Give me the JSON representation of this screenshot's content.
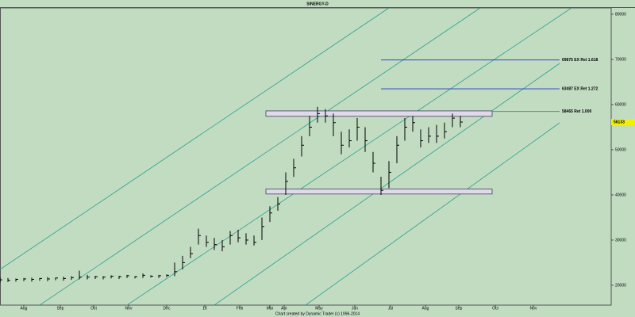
{
  "chart_data": {
    "type": "ohlc",
    "title": "SINERGY-D",
    "footer": "Chart created by Dynamic Trader (c) 1996-2014",
    "color": "#000000",
    "high": [
      21800,
      21600,
      21500,
      21600,
      21700,
      21600,
      21800,
      21700,
      21900,
      22000,
      23200,
      22300,
      22100,
      22000,
      22200,
      22100,
      22300,
      22000,
      22600,
      22200,
      22300,
      22400,
      25000,
      26500,
      28500,
      32500,
      31000,
      30500,
      30000,
      32000,
      32300,
      31500,
      31000,
      35000,
      37500,
      39500,
      45000,
      48000,
      53000,
      57500,
      59500,
      59000,
      58000,
      54000,
      54500,
      57000,
      55000,
      49500,
      44000,
      47500,
      53000,
      57000,
      57500,
      54500,
      55000,
      55500,
      56000,
      58000,
      57500
    ],
    "low": [
      20600,
      20700,
      20800,
      20900,
      20800,
      21000,
      20900,
      21100,
      21000,
      21200,
      21300,
      21300,
      21400,
      21300,
      21500,
      21400,
      21600,
      21500,
      21600,
      21700,
      21600,
      21800,
      22000,
      23500,
      26000,
      29000,
      28500,
      27800,
      27500,
      29000,
      29500,
      29000,
      28800,
      30000,
      34000,
      36500,
      40000,
      44000,
      48500,
      53000,
      56000,
      56000,
      53000,
      49000,
      50500,
      52000,
      49500,
      45000,
      40000,
      41500,
      47000,
      52000,
      54000,
      50500,
      51500,
      51500,
      52500,
      55000,
      55000
    ],
    "close": [
      21200,
      21100,
      21300,
      21400,
      21300,
      21500,
      21400,
      21600,
      21500,
      21700,
      21800,
      21800,
      21900,
      21800,
      22000,
      21900,
      22100,
      21900,
      22200,
      22000,
      22100,
      22200,
      23000,
      25000,
      27000,
      31000,
      29500,
      29000,
      28500,
      31000,
      30500,
      30000,
      29500,
      33000,
      36000,
      38000,
      43000,
      46000,
      51000,
      55000,
      58000,
      57500,
      56000,
      51000,
      52000,
      55000,
      52000,
      47000,
      41000,
      45000,
      51000,
      55000,
      56000,
      52000,
      53000,
      53000,
      54000,
      57000,
      56133
    ],
    "xlim": [
      0,
      77
    ],
    "ylim": [
      15600,
      81400
    ],
    "yticks": [
      20000,
      30000,
      40000,
      50000,
      60000,
      70000,
      80000
    ],
    "xticks": [
      {
        "value": 3,
        "label": "Aug"
      },
      {
        "value": 7.6,
        "label": "Sep"
      },
      {
        "value": 11.8,
        "label": "Oct"
      },
      {
        "value": 16.2,
        "label": "Nov"
      },
      {
        "value": 21,
        "label": "Dec"
      },
      {
        "value": 25.8,
        "label": "16"
      },
      {
        "value": 30.2,
        "label": "Feb"
      },
      {
        "value": 34,
        "label": "Mar"
      },
      {
        "value": 35.8,
        "label": "Apr"
      },
      {
        "value": 40.2,
        "label": "May"
      },
      {
        "value": 44.7,
        "label": "Jun"
      },
      {
        "value": 49.2,
        "label": "Jul"
      },
      {
        "value": 53.6,
        "label": "Aug"
      },
      {
        "value": 57.8,
        "label": "Sep"
      },
      {
        "value": 62.4,
        "label": "Oct"
      },
      {
        "value": 67.2,
        "label": "Nov"
      }
    ],
    "levels": [
      {
        "value": 69875,
        "label": "69875 EX Ret 1.618",
        "color": "#2030c8",
        "start": 48
      },
      {
        "value": 63487,
        "label": "63487 EX Ret 1.272",
        "color": "#2030c8",
        "start": 48
      },
      {
        "value": 58465,
        "label": "58465 Ret 1.000",
        "color": "#30a030",
        "start": 62
      }
    ],
    "zones": [
      {
        "from": 57400,
        "to": 58600,
        "start": 33.5,
        "end": 62
      },
      {
        "from": 40200,
        "to": 41300,
        "start": 33.5,
        "end": 62
      }
    ],
    "last": {
      "value": 56133,
      "label": "56133",
      "color": "#f0f000"
    }
  }
}
